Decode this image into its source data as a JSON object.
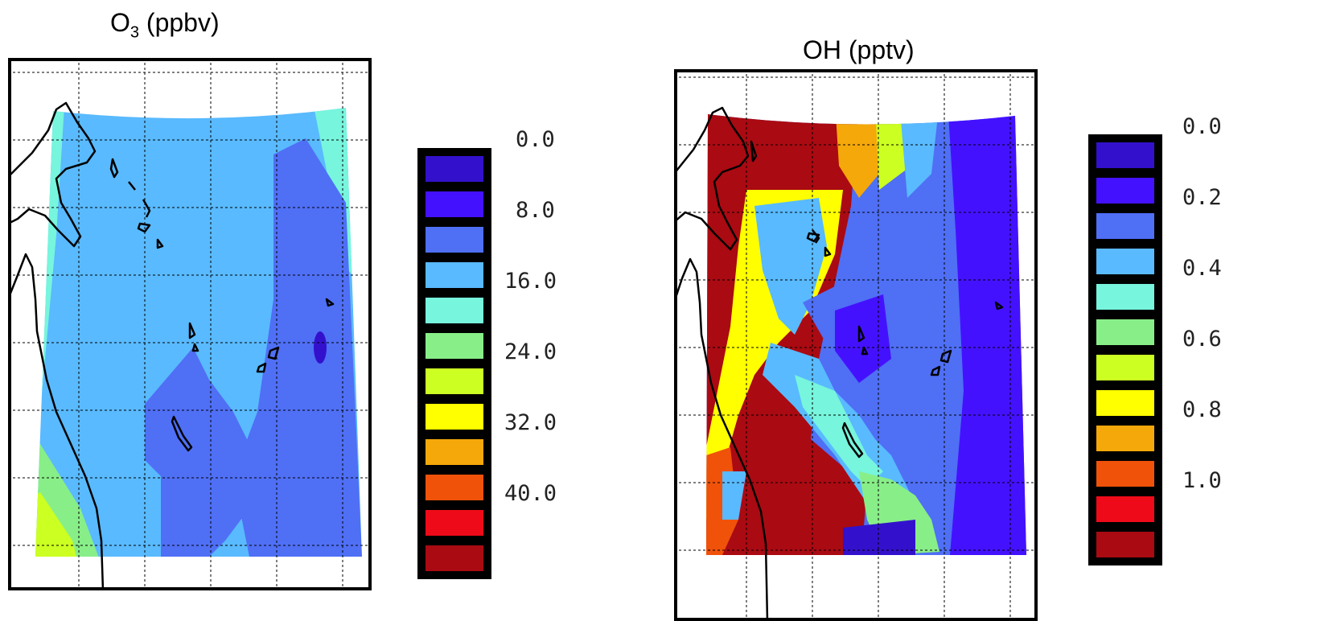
{
  "panels": [
    {
      "title_main": "O",
      "title_sub": "3",
      "title_unit": "(ppbv)",
      "legend_colors": [
        "#3311cc",
        "#4411ff",
        "#4f6ff5",
        "#59baff",
        "#77f5dd",
        "#88ee88",
        "#ccff22",
        "#ffff00",
        "#f5a80a",
        "#f0520a",
        "#ee0a18",
        "#aa0a12"
      ],
      "legend_labels": [
        "0.0",
        "8.0",
        "16.0",
        "24.0",
        "32.0",
        "40.0"
      ]
    },
    {
      "title_main": "OH (pptv)",
      "legend_colors": [
        "#3311cc",
        "#4411ff",
        "#4f6ff5",
        "#59baff",
        "#77f5dd",
        "#88ee88",
        "#ccff22",
        "#ffff00",
        "#f5a80a",
        "#f0520a",
        "#ee0a18",
        "#aa0a12"
      ],
      "legend_labels": [
        "0.0",
        "0.2",
        "0.4",
        "0.6",
        "0.8",
        "1.0"
      ]
    }
  ]
}
